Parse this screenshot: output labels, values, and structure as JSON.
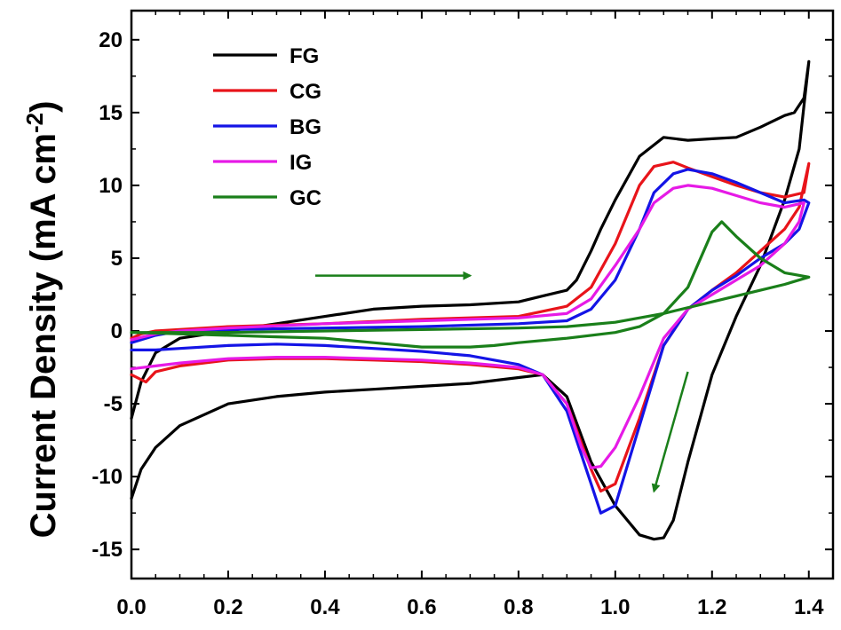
{
  "chart_data": {
    "type": "line",
    "xlabel": "",
    "ylabel": "Current Density (mA cm",
    "ylabel_superscript": "-2",
    "ylabel_suffix": ")",
    "xlim": [
      0.0,
      1.45
    ],
    "ylim": [
      -17,
      22
    ],
    "xticks": [
      "0.0",
      "0.2",
      "0.4",
      "0.6",
      "0.8",
      "1.0",
      "1.2",
      "1.4"
    ],
    "yticks": [
      "-15",
      "-10",
      "-5",
      "0",
      "5",
      "10",
      "15",
      "20"
    ],
    "grid": false,
    "legend_position": "top-left",
    "series": [
      {
        "name": "FG",
        "color": "#000000",
        "x": [
          0.0,
          0.02,
          0.05,
          0.1,
          0.2,
          0.3,
          0.4,
          0.5,
          0.6,
          0.7,
          0.8,
          0.85,
          0.9,
          0.95,
          1.0,
          1.05,
          1.08,
          1.1,
          1.12,
          1.15,
          1.2,
          1.25,
          1.3,
          1.35,
          1.38,
          1.4,
          1.39,
          1.37,
          1.35,
          1.3,
          1.25,
          1.2,
          1.15,
          1.1,
          1.05,
          1.0,
          0.97,
          0.95,
          0.92,
          0.9,
          0.85,
          0.8,
          0.7,
          0.6,
          0.5,
          0.4,
          0.3,
          0.2,
          0.1,
          0.05,
          0.02,
          0.0
        ],
        "y": [
          -11.5,
          -9.5,
          -8.0,
          -6.5,
          -5.0,
          -4.5,
          -4.2,
          -4.0,
          -3.8,
          -3.6,
          -3.2,
          -3.0,
          -4.5,
          -9.0,
          -12.0,
          -14.0,
          -14.3,
          -14.2,
          -13.0,
          -9.0,
          -3.0,
          1.0,
          4.5,
          9.0,
          12.5,
          18.5,
          16.0,
          15.0,
          14.8,
          14.0,
          13.3,
          13.2,
          13.1,
          13.3,
          12.0,
          9.0,
          7.0,
          5.5,
          3.5,
          2.8,
          2.4,
          2.0,
          1.8,
          1.7,
          1.5,
          1.0,
          0.5,
          0.0,
          -0.5,
          -1.5,
          -3.5,
          -6.0
        ]
      },
      {
        "name": "CG",
        "color": "#e8141a",
        "x": [
          0.0,
          0.03,
          0.05,
          0.1,
          0.2,
          0.3,
          0.4,
          0.5,
          0.6,
          0.7,
          0.8,
          0.85,
          0.9,
          0.95,
          0.97,
          1.0,
          1.05,
          1.1,
          1.15,
          1.2,
          1.25,
          1.3,
          1.35,
          1.38,
          1.4,
          1.39,
          1.35,
          1.3,
          1.25,
          1.2,
          1.15,
          1.12,
          1.08,
          1.05,
          1.0,
          0.95,
          0.9,
          0.8,
          0.6,
          0.4,
          0.2,
          0.1,
          0.05,
          0.02,
          0.0
        ],
        "y": [
          -3.0,
          -3.5,
          -2.8,
          -2.4,
          -2.0,
          -1.9,
          -1.9,
          -2.0,
          -2.1,
          -2.3,
          -2.6,
          -3.0,
          -5.0,
          -9.5,
          -11.0,
          -10.5,
          -6.0,
          -1.0,
          1.5,
          2.8,
          4.0,
          5.5,
          7.0,
          8.5,
          11.5,
          9.5,
          9.2,
          9.5,
          10.0,
          10.6,
          11.2,
          11.6,
          11.3,
          10.0,
          6.0,
          3.0,
          1.7,
          1.0,
          0.8,
          0.5,
          0.3,
          0.1,
          0.0,
          -0.2,
          -0.5
        ]
      },
      {
        "name": "BG",
        "color": "#1414e6",
        "x": [
          0.0,
          0.05,
          0.1,
          0.2,
          0.3,
          0.4,
          0.5,
          0.6,
          0.7,
          0.8,
          0.85,
          0.9,
          0.95,
          0.97,
          1.0,
          1.05,
          1.1,
          1.15,
          1.2,
          1.25,
          1.3,
          1.35,
          1.38,
          1.4,
          1.39,
          1.35,
          1.3,
          1.25,
          1.2,
          1.15,
          1.12,
          1.08,
          1.05,
          1.0,
          0.95,
          0.9,
          0.8,
          0.6,
          0.4,
          0.2,
          0.1,
          0.05,
          0.0
        ],
        "y": [
          -1.3,
          -1.3,
          -1.2,
          -1.0,
          -0.9,
          -1.0,
          -1.2,
          -1.4,
          -1.7,
          -2.3,
          -3.0,
          -5.5,
          -10.5,
          -12.5,
          -12.0,
          -6.5,
          -1.0,
          1.5,
          2.8,
          3.8,
          5.0,
          6.0,
          7.0,
          8.8,
          9.0,
          8.8,
          9.5,
          10.2,
          10.8,
          11.1,
          10.8,
          9.5,
          7.0,
          3.5,
          1.5,
          0.7,
          0.5,
          0.3,
          0.2,
          0.1,
          0.0,
          -0.3,
          -0.8
        ]
      },
      {
        "name": "IG",
        "color": "#e61ae6",
        "x": [
          0.0,
          0.05,
          0.1,
          0.2,
          0.3,
          0.4,
          0.5,
          0.6,
          0.7,
          0.8,
          0.85,
          0.9,
          0.93,
          0.95,
          0.97,
          1.0,
          1.05,
          1.1,
          1.15,
          1.2,
          1.25,
          1.3,
          1.35,
          1.38,
          1.39,
          1.35,
          1.3,
          1.25,
          1.2,
          1.15,
          1.12,
          1.08,
          1.05,
          1.0,
          0.95,
          0.9,
          0.8,
          0.6,
          0.4,
          0.2,
          0.1,
          0.05,
          0.0
        ],
        "y": [
          -2.6,
          -2.4,
          -2.2,
          -1.9,
          -1.8,
          -1.8,
          -1.9,
          -2.0,
          -2.2,
          -2.5,
          -3.0,
          -5.0,
          -8.0,
          -9.4,
          -9.3,
          -8.0,
          -4.5,
          -0.5,
          1.5,
          2.5,
          3.5,
          4.5,
          6.0,
          7.5,
          8.8,
          8.5,
          8.8,
          9.3,
          9.8,
          10.0,
          9.8,
          8.8,
          7.0,
          4.5,
          2.2,
          1.2,
          0.9,
          0.7,
          0.5,
          0.2,
          0.0,
          -0.2,
          -0.6
        ]
      },
      {
        "name": "GC",
        "color": "#1a7f1a",
        "x": [
          0.0,
          0.1,
          0.2,
          0.3,
          0.4,
          0.5,
          0.6,
          0.7,
          0.75,
          0.8,
          0.9,
          1.0,
          1.05,
          1.1,
          1.15,
          1.2,
          1.22,
          1.25,
          1.3,
          1.35,
          1.4,
          1.35,
          1.3,
          1.2,
          1.1,
          1.0,
          0.9,
          0.8,
          0.6,
          0.4,
          0.2,
          0.0
        ],
        "y": [
          -0.1,
          -0.2,
          -0.3,
          -0.4,
          -0.5,
          -0.8,
          -1.1,
          -1.1,
          -1.0,
          -0.8,
          -0.5,
          -0.1,
          0.3,
          1.2,
          3.0,
          6.8,
          7.5,
          6.5,
          5.0,
          4.0,
          3.7,
          3.2,
          2.8,
          2.0,
          1.2,
          0.6,
          0.3,
          0.2,
          0.1,
          0.0,
          -0.1,
          -0.1
        ]
      }
    ],
    "annotations": [
      {
        "type": "arrow",
        "color": "#1a7f1a",
        "from": [
          0.38,
          3.8
        ],
        "to": [
          0.7,
          3.8
        ]
      },
      {
        "type": "arrow",
        "color": "#1a7f1a",
        "from": [
          1.15,
          -2.8
        ],
        "to": [
          1.08,
          -11.0
        ]
      }
    ]
  }
}
